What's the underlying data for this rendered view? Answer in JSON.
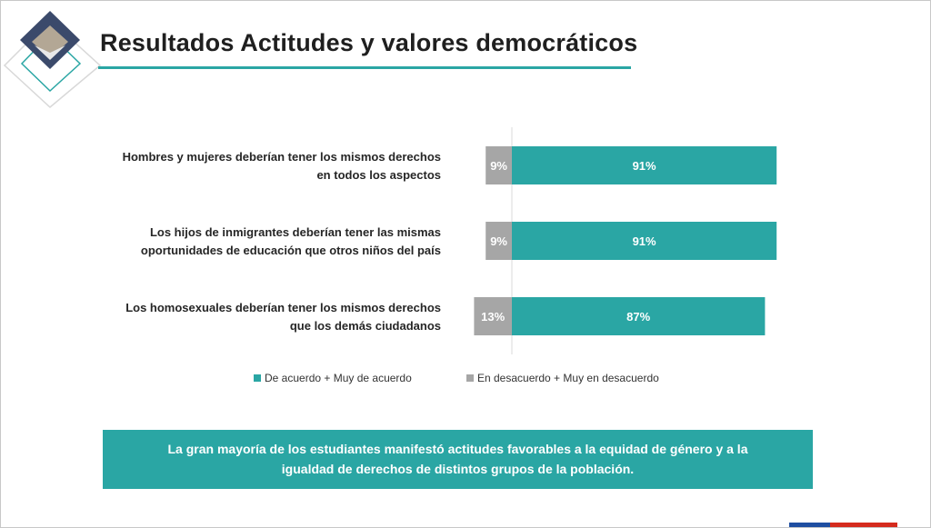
{
  "header": {
    "title": "Resultados Actitudes y valores democráticos"
  },
  "decoration": {
    "photo_icon": "student-writing-photo"
  },
  "chart_data": {
    "type": "bar",
    "orientation": "horizontal",
    "stacked": true,
    "diverging": true,
    "categories": [
      [
        "Hombres y mujeres deberían tener los mismos derechos",
        "en todos los aspectos"
      ],
      [
        "Los hijos de inmigrantes deberían tener las mismas",
        "oportunidades de educación que otros niños del país"
      ],
      [
        "Los homosexuales deberían tener los mismos derechos",
        "que los demás ciudadanos"
      ]
    ],
    "series": [
      {
        "name": "De acuerdo + Muy de acuerdo",
        "values": [
          91,
          91,
          87
        ],
        "labels": [
          "91%",
          "91%",
          "87%"
        ],
        "color": "#2aa6a4"
      },
      {
        "name": "En desacuerdo + Muy en desacuerdo",
        "values": [
          9,
          9,
          13
        ],
        "labels": [
          "9%",
          "9%",
          "13%"
        ],
        "color": "#a6a6a6"
      }
    ],
    "unit": "%",
    "grid": false,
    "legend_position": "bottom"
  },
  "callout": {
    "line1": "La gran mayoría de los estudiantes manifestó actitudes favorables a la equidad de género y a la",
    "line2": "igualdad de derechos de distintos grupos de la población."
  },
  "colors": {
    "accent": "#2aa6a4",
    "neutral": "#a6a6a6",
    "flag_blue": "#1f4ea1",
    "flag_red": "#d52b1e"
  }
}
